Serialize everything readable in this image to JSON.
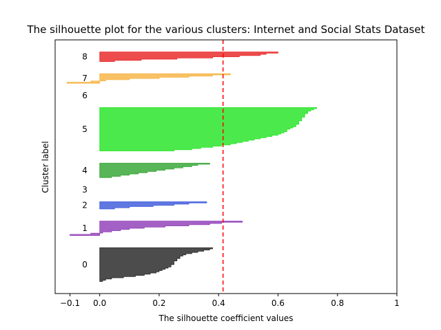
{
  "chart_data": {
    "type": "area",
    "title": "The silhouette plot for the various clusters: Internet and Social Stats Dataset",
    "xlabel": "The silhouette coefficient values",
    "ylabel": "Cluster label",
    "xlim": [
      -0.15,
      1.0
    ],
    "xticks": [
      -0.1,
      0.0,
      0.2,
      0.4,
      0.6,
      0.8,
      1.0
    ],
    "xtick_labels": [
      "−0.1",
      "0.0",
      "0.2",
      "0.4",
      "0.6",
      "0.8",
      "1"
    ],
    "yticks": [],
    "average_silhouette_score": 0.415,
    "average_line_color": "#ff0000",
    "clusters": [
      {
        "label": "0",
        "color": "#000000",
        "values": [
          0.38,
          0.37,
          0.35,
          0.33,
          0.31,
          0.29,
          0.28,
          0.27,
          0.27,
          0.26,
          0.26,
          0.25,
          0.25,
          0.25,
          0.24,
          0.24,
          0.23,
          0.22,
          0.21,
          0.2,
          0.19,
          0.17,
          0.15,
          0.12,
          0.08,
          0.04,
          0.02,
          0.01
        ]
      },
      {
        "label": "1",
        "color": "#7d1eac",
        "values": [
          0.48,
          0.41,
          0.37,
          0.3,
          0.22,
          0.15,
          0.1,
          0.07,
          0.04,
          0.01,
          -0.03,
          -0.1
        ]
      },
      {
        "label": "2",
        "color": "#1c3fd6",
        "values": [
          0.36,
          0.3,
          0.25,
          0.18,
          0.1,
          0.05
        ]
      },
      {
        "label": "3",
        "color": "#00a0a0",
        "values": []
      },
      {
        "label": "4",
        "color": "#119611",
        "values": [
          0.37,
          0.33,
          0.31,
          0.28,
          0.25,
          0.22,
          0.19,
          0.16,
          0.13,
          0.1,
          0.07,
          0.04
        ]
      },
      {
        "label": "5",
        "color": "#00e000",
        "values": [
          0.73,
          0.72,
          0.71,
          0.7,
          0.7,
          0.69,
          0.69,
          0.69,
          0.68,
          0.68,
          0.68,
          0.67,
          0.67,
          0.67,
          0.66,
          0.66,
          0.65,
          0.64,
          0.63,
          0.63,
          0.62,
          0.61,
          0.6,
          0.58,
          0.56,
          0.54,
          0.52,
          0.5,
          0.48,
          0.46,
          0.44,
          0.41,
          0.38,
          0.34,
          0.31,
          0.25
        ]
      },
      {
        "label": "6",
        "color": "#a0a000",
        "values": []
      },
      {
        "label": "7",
        "color": "#f5a623",
        "values": [
          0.44,
          0.38,
          0.3,
          0.2,
          0.1,
          0.02,
          -0.03,
          -0.11
        ]
      },
      {
        "label": "8",
        "color": "#e60000",
        "values": [
          0.6,
          0.56,
          0.54,
          0.47,
          0.38,
          0.26,
          0.14,
          0.05
        ]
      }
    ]
  }
}
